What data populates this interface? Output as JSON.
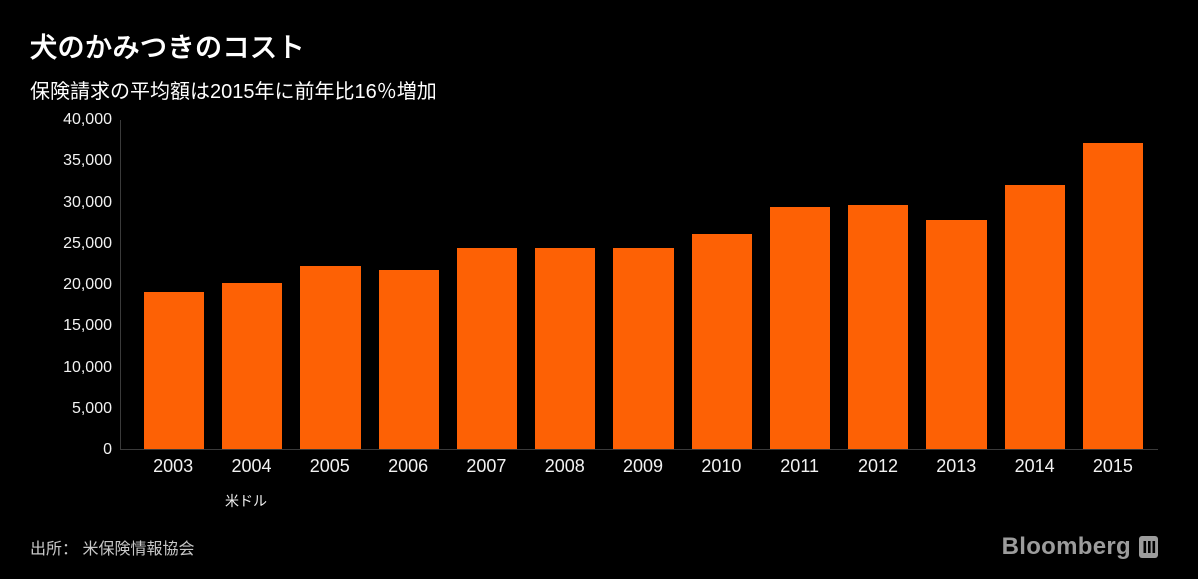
{
  "header": {
    "title": "犬のかみつきのコスト",
    "subtitle": "保険請求の平均額は2015年に前年比16％増加"
  },
  "chart_data": {
    "type": "bar",
    "categories": [
      "2003",
      "2004",
      "2005",
      "2006",
      "2007",
      "2008",
      "2009",
      "2010",
      "2011",
      "2012",
      "2013",
      "2014",
      "2015"
    ],
    "values": [
      19100,
      20200,
      22300,
      21800,
      24400,
      24400,
      24400,
      26200,
      29400,
      29700,
      27900,
      32100,
      37200
    ],
    "title": "犬のかみつきのコスト",
    "subtitle": "保険請求の平均額は2015年に前年比16％増加",
    "xlabel": "",
    "ylabel": "米ドル",
    "ylim": [
      0,
      40000
    ],
    "yticks": [
      "0",
      "5,000",
      "10,000",
      "15,000",
      "20,000",
      "25,000",
      "30,000",
      "35,000",
      "40,000"
    ],
    "grid": "off",
    "legend": "none",
    "bar_color": "#fd6105",
    "background_color": "#000000"
  },
  "footer": {
    "source": "出所： 米保険情報協会",
    "brand": "Bloomberg"
  }
}
